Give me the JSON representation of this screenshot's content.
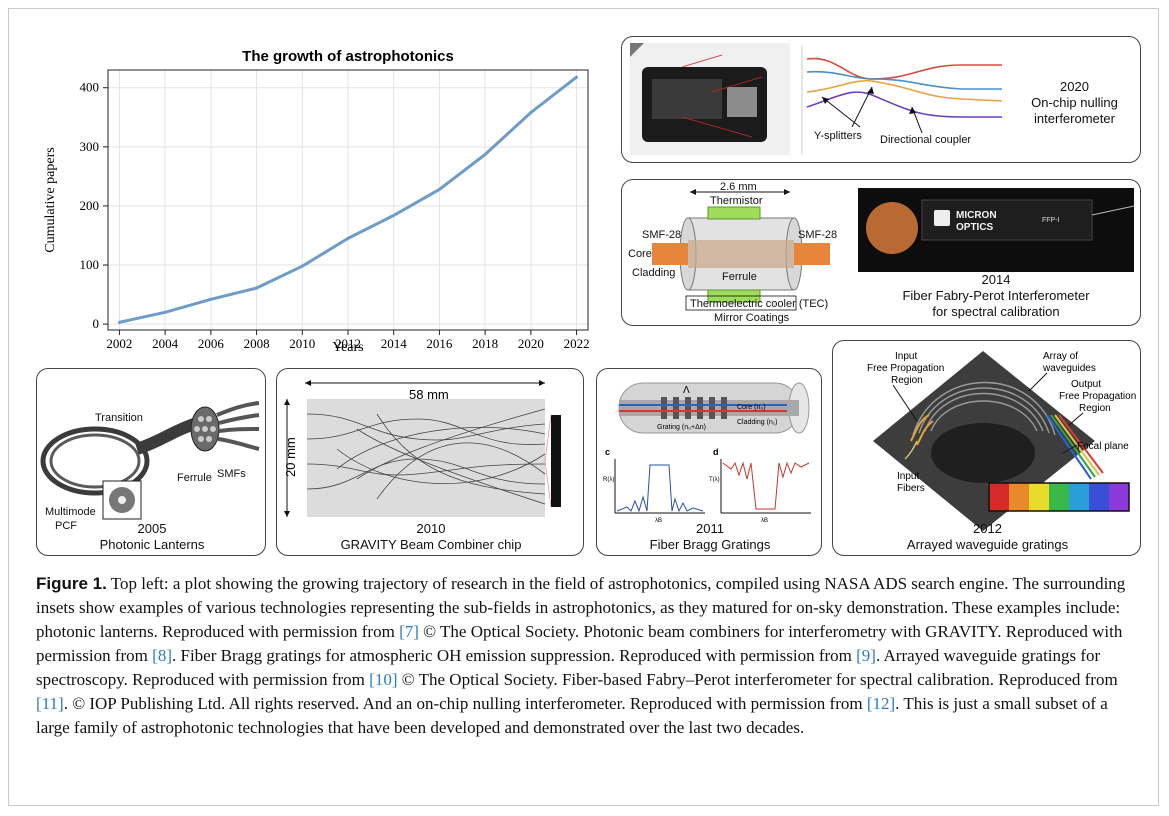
{
  "chart_data": {
    "type": "line",
    "title": "The growth of astrophotonics",
    "xlabel": "Years",
    "ylabel": "Cumulative papers",
    "x": [
      2002,
      2004,
      2006,
      2008,
      2010,
      2012,
      2014,
      2016,
      2018,
      2020,
      2022
    ],
    "y": [
      3,
      20,
      42,
      61,
      98,
      145,
      184,
      228,
      287,
      358,
      418
    ],
    "xlim": [
      2001.5,
      2022.5
    ],
    "ylim": [
      -10,
      430
    ],
    "xticks": [
      "2002",
      "2004",
      "2006",
      "2008",
      "2010",
      "2012",
      "2014",
      "2016",
      "2018",
      "2020",
      "2022"
    ],
    "yticks": [
      "0",
      "100",
      "200",
      "300",
      "400"
    ],
    "grid": true,
    "line_color": "#6e9bc8"
  },
  "panels": {
    "nulling": {
      "year": "2020",
      "title_line1": "On-chip nulling",
      "title_line2": "interferometer",
      "y_splitters": "Y-splitters",
      "directional_coupler": "Directional coupler"
    },
    "fabry": {
      "dimension": "2.6 mm",
      "thermistor": "Thermistor",
      "smf_left": "SMF-28",
      "smf_right": "SMF-28",
      "core": "Core",
      "cladding": "Cladding",
      "ferrule": "Ferrule",
      "tec": "Thermoelectric cooler (TEC)",
      "mirror": "Mirror Coatings",
      "brand_line1": "MICRON",
      "brand_line2": "OPTICS",
      "model": "FFP-I",
      "year": "2014",
      "title_line1": "Fiber Fabry-Perot Interferometer",
      "title_line2": "for spectral calibration"
    },
    "lantern": {
      "transition": "Transition",
      "ferrule": "Ferrule",
      "smfs": "SMFs",
      "multimode": "Multimode",
      "pcf": "PCF",
      "year": "2005",
      "title": "Photonic Lanterns"
    },
    "gravity": {
      "width": "58 mm",
      "height": "20 mm",
      "year": "2010",
      "title": "GRAVITY Beam Combiner chip"
    },
    "bragg": {
      "lambda": "Λ",
      "core": "Core (n₀)",
      "cladding": "Cladding (n₁)",
      "grating": "Grating (n₀+Δn)",
      "c": "c",
      "d": "d",
      "r_axis": "R(λ)",
      "t_axis": "T(λ)",
      "lambda_b": "λB",
      "year": "2011",
      "title": "Fiber Bragg Gratings"
    },
    "awg": {
      "input_region_l1": "Input",
      "input_region_l2": "Free Propagation",
      "input_region_l3": "Region",
      "array_l1": "Array of",
      "array_l2": "waveguides",
      "output_l1": "Output",
      "output_l2": "Free Propagation",
      "output_l3": "Region",
      "focal": "Focal plane",
      "input_fibers_l1": "Input",
      "input_fibers_l2": "Fibers",
      "year": "2012",
      "title": "Arrayed waveguide gratings"
    }
  },
  "caption": {
    "label": "Figure 1.",
    "s1": " Top left: a plot showing the growing trajectory of research in the field of astrophotonics, compiled using NASA ADS search engine. The surrounding insets show examples of various technologies representing the sub-fields in astrophotonics, as they matured for on-sky demonstration. These examples include: photonic lanterns. Reproduced with permission from ",
    "r7": "[7]",
    "s2": " © The Optical Society. Photonic beam combiners for interferometry with GRAVITY. Reproduced with permission from ",
    "r8": "[8]",
    "s3": ". Fiber Bragg gratings for atmospheric OH emission suppression. Reproduced with permission from ",
    "r9": "[9]",
    "s4": ". Arrayed waveguide gratings for spectroscopy. Reproduced with permission from ",
    "r10": "[10]",
    "s5": " © The Optical Society. Fiber-based Fabry–Perot interferometer for spectral calibration. Reproduced from ",
    "r11": "[11]",
    "s6": ". © IOP Publishing Ltd. All rights reserved. And an on-chip nulling interferometer. Reproduced with permission from ",
    "r12": "[12]",
    "s7": ". This is just a small subset of a large family of astrophotonic technologies that have been developed and demonstrated over the last two decades."
  }
}
